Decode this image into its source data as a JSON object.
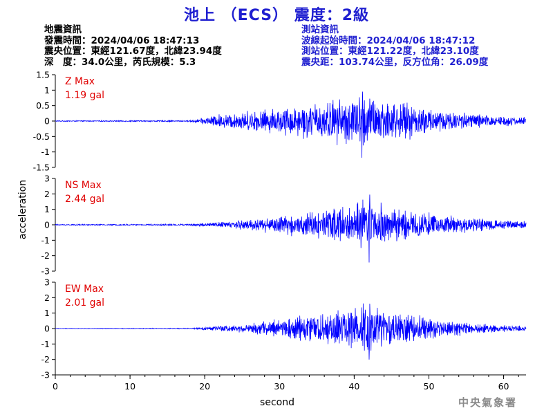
{
  "title": "池上 （ECS） 震度：2級",
  "event_info": {
    "heading": "地震資訊",
    "origin_time": "發震時間：2024/04/06 18:47:13",
    "epicenter": "震央位置：東經121.67度，北緯23.94度",
    "depth_magnitude": "深　度：34.0公里，芮氏規模：5.3"
  },
  "station_info": {
    "heading": "測站資訊",
    "wave_start": "波線起始時間：2024/04/06 18:47:12",
    "station_location": "測站位置：東經121.22度，北緯23.10度",
    "distance_azimuth": "震央距：103.74公里，反方位角：26.09度"
  },
  "footer": "中央氣象署",
  "colors": {
    "trace": "#0000ff",
    "title": "#1f1fd0",
    "max_label": "#e00000",
    "axis": "#000000",
    "footer": "#8a8a8a"
  },
  "chart_data": {
    "type": "line",
    "xlabel": "second",
    "ylabel": "acceleration",
    "xlim": [
      0,
      63
    ],
    "x_ticks": [
      0,
      10,
      20,
      30,
      40,
      50,
      60
    ],
    "x_tick_labels": [
      "0",
      "10",
      "20",
      "30",
      "40",
      "50",
      "60"
    ],
    "grid": false,
    "panels": [
      {
        "name": "Z",
        "max_label": "Z Max",
        "max_value_label": "1.19 gal",
        "max": 1.19,
        "ylim": [
          -1.5,
          1.5
        ],
        "y_ticks": [
          -1.5,
          -1,
          -0.5,
          0,
          0.5,
          1,
          1.5
        ],
        "y_tick_labels": [
          "-1.5",
          "-1",
          "-0.5",
          "0",
          "0.5",
          "1",
          "1.5"
        ],
        "envelope": [
          [
            0,
            0.02
          ],
          [
            18,
            0.03
          ],
          [
            19.5,
            0.12
          ],
          [
            22,
            0.3
          ],
          [
            26,
            0.45
          ],
          [
            30,
            0.55
          ],
          [
            35,
            0.8
          ],
          [
            39,
            1.0
          ],
          [
            41,
            1.19
          ],
          [
            43,
            1.0
          ],
          [
            47,
            0.75
          ],
          [
            52,
            0.5
          ],
          [
            57,
            0.3
          ],
          [
            63,
            0.15
          ]
        ]
      },
      {
        "name": "NS",
        "max_label": "NS Max",
        "max_value_label": "2.44 gal",
        "max": 2.44,
        "ylim": [
          -3,
          3
        ],
        "y_ticks": [
          -3,
          -2,
          -1,
          0,
          1,
          2,
          3
        ],
        "y_tick_labels": [
          "-3",
          "-2",
          "-1",
          "0",
          "1",
          "2",
          "3"
        ],
        "envelope": [
          [
            0,
            0.05
          ],
          [
            18,
            0.07
          ],
          [
            22,
            0.25
          ],
          [
            26,
            0.5
          ],
          [
            31,
            0.8
          ],
          [
            35,
            1.2
          ],
          [
            38,
            1.6
          ],
          [
            40,
            1.5
          ],
          [
            42,
            2.44
          ],
          [
            44,
            1.8
          ],
          [
            48,
            1.2
          ],
          [
            52,
            0.8
          ],
          [
            57,
            0.5
          ],
          [
            63,
            0.3
          ]
        ]
      },
      {
        "name": "EW",
        "max_label": "EW Max",
        "max_value_label": "2.01 gal",
        "max": 2.01,
        "ylim": [
          -3,
          3
        ],
        "y_ticks": [
          -3,
          -2,
          -1,
          0,
          1,
          2,
          3
        ],
        "y_tick_labels": [
          "-3",
          "-2",
          "-1",
          "0",
          "1",
          "2",
          "3"
        ],
        "envelope": [
          [
            0,
            0.02
          ],
          [
            18,
            0.04
          ],
          [
            22,
            0.25
          ],
          [
            26,
            0.4
          ],
          [
            30,
            0.8
          ],
          [
            34,
            1.3
          ],
          [
            38,
            1.5
          ],
          [
            40,
            1.6
          ],
          [
            42,
            2.01
          ],
          [
            44,
            1.4
          ],
          [
            48,
            1.2
          ],
          [
            52,
            0.7
          ],
          [
            57,
            0.4
          ],
          [
            63,
            0.2
          ]
        ]
      }
    ]
  }
}
